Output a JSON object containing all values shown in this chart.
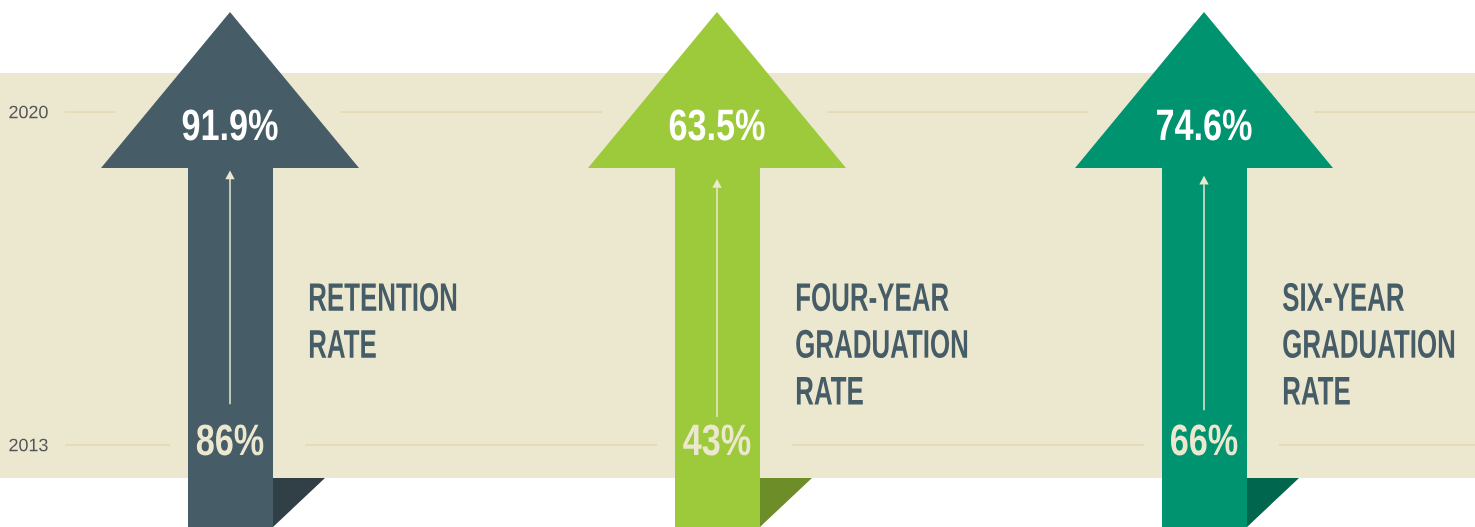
{
  "chart_data": {
    "type": "other",
    "categories": [
      "RETENTION RATE",
      "FOUR-YEAR GRADUATION RATE",
      "SIX-YEAR GRADUATION RATE"
    ],
    "annotations": [
      "2020",
      "2013"
    ],
    "series": [
      {
        "colors": [
          "#465c66",
          "#9dca3a",
          "#00936f"
        ],
        "values": [
          91.9,
          63.5,
          74.6
        ],
        "value_labels": [
          "91.9%",
          "63.5%",
          "74.6%"
        ]
      },
      {
        "colors": [
          "#465c66",
          "#9dca3a",
          "#00936f"
        ],
        "values": [
          86,
          43,
          66
        ],
        "value_labels": [
          "86%",
          "43%",
          "66%"
        ]
      }
    ]
  }
}
